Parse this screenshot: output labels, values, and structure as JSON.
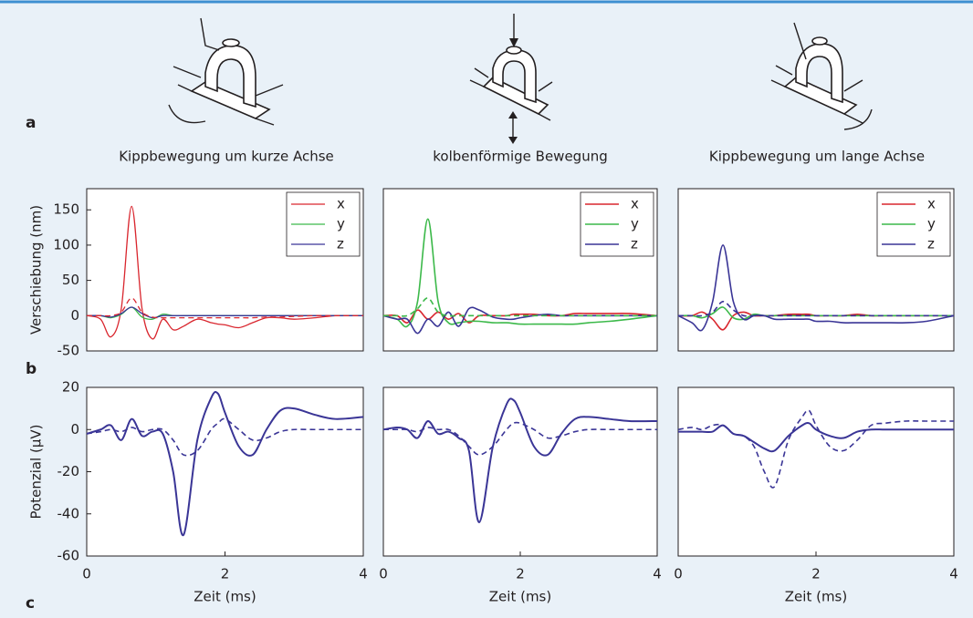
{
  "labels": {
    "a": "a",
    "b": "b",
    "c": "c"
  },
  "captions": [
    "Kippbewegung um kurze Achse",
    "kolbenförmige Bewegung",
    "Kippbewegung um lange Achse"
  ],
  "chart_data": [
    {
      "type": "line",
      "ylabel": "Verschiebung (nm)",
      "xlim": [
        0,
        4
      ],
      "ylim": [
        -50,
        180
      ],
      "yticks": [
        -50,
        0,
        50,
        100,
        150
      ],
      "legend": "upper right",
      "x": [
        0,
        0.2,
        0.35,
        0.5,
        0.65,
        0.8,
        0.95,
        1.1,
        1.25,
        1.4,
        1.6,
        1.8,
        1.9,
        2.0,
        2.2,
        2.4,
        2.6,
        2.8,
        3.0,
        3.3,
        3.6,
        4.0
      ],
      "series": [
        {
          "name": "x",
          "color": "#d9262e",
          "width": 1.3,
          "values": [
            0,
            -5,
            -30,
            10,
            155,
            10,
            -33,
            -5,
            -20,
            -15,
            -5,
            -10,
            -12,
            -13,
            -17,
            -10,
            -3,
            -3,
            -5,
            -3,
            0,
            0
          ]
        },
        {
          "name": "y",
          "color": "#3cb94a",
          "width": 1.3,
          "values": [
            0,
            0,
            -3,
            2,
            12,
            -2,
            -5,
            2,
            0,
            0,
            0,
            0,
            0,
            0,
            0,
            0,
            0,
            0,
            0,
            0,
            0,
            0
          ]
        },
        {
          "name": "z",
          "color": "#3a3596",
          "width": 1.3,
          "values": [
            0,
            0,
            -2,
            3,
            12,
            3,
            -3,
            0,
            0,
            0,
            0,
            0,
            0,
            0,
            0,
            0,
            0,
            0,
            0,
            0,
            0,
            0
          ]
        },
        {
          "color": "#d9262e",
          "dashed": true,
          "width": 1.3,
          "values": [
            0,
            0,
            0,
            5,
            25,
            5,
            -2,
            -3,
            -3,
            -3,
            -3,
            -3,
            -3,
            -3,
            -3,
            -3,
            -2,
            -2,
            -1,
            0,
            0,
            0
          ]
        }
      ]
    },
    {
      "type": "line",
      "xlim": [
        0,
        4
      ],
      "ylim": [
        -50,
        180
      ],
      "legend": "upper right",
      "x": [
        0,
        0.2,
        0.35,
        0.5,
        0.65,
        0.8,
        0.95,
        1.1,
        1.25,
        1.4,
        1.6,
        1.8,
        1.9,
        2.0,
        2.2,
        2.4,
        2.6,
        2.8,
        3.0,
        3.3,
        3.6,
        4.0
      ],
      "series": [
        {
          "name": "x",
          "color": "#d9262e",
          "width": 1.6,
          "values": [
            0,
            0,
            -10,
            8,
            -5,
            5,
            -5,
            3,
            -10,
            0,
            0,
            0,
            2,
            2,
            2,
            0,
            0,
            3,
            3,
            3,
            3,
            0
          ]
        },
        {
          "name": "y",
          "color": "#3cb94a",
          "width": 1.6,
          "values": [
            0,
            -5,
            -15,
            20,
            137,
            20,
            -10,
            -10,
            -8,
            -8,
            -10,
            -10,
            -11,
            -12,
            -12,
            -12,
            -12,
            -12,
            -10,
            -8,
            -5,
            0
          ]
        },
        {
          "name": "z",
          "color": "#3a3596",
          "width": 1.6,
          "values": [
            0,
            -5,
            -5,
            -25,
            -5,
            -15,
            5,
            -15,
            10,
            8,
            -2,
            -5,
            -5,
            -3,
            0,
            2,
            0,
            0,
            0,
            0,
            0,
            0
          ]
        },
        {
          "color": "#3cb94a",
          "dashed": true,
          "width": 1.6,
          "values": [
            0,
            0,
            0,
            10,
            25,
            5,
            0,
            0,
            0,
            0,
            0,
            0,
            0,
            0,
            0,
            0,
            0,
            0,
            0,
            0,
            0,
            0
          ]
        }
      ]
    },
    {
      "type": "line",
      "xlim": [
        0,
        4
      ],
      "ylim": [
        -50,
        180
      ],
      "legend": "upper right",
      "x": [
        0,
        0.2,
        0.35,
        0.5,
        0.65,
        0.8,
        0.95,
        1.1,
        1.25,
        1.4,
        1.6,
        1.8,
        1.9,
        2.0,
        2.2,
        2.4,
        2.6,
        2.8,
        3.0,
        3.3,
        3.6,
        4.0
      ],
      "series": [
        {
          "name": "x",
          "color": "#d9262e",
          "width": 1.6,
          "values": [
            0,
            0,
            5,
            -5,
            -20,
            0,
            5,
            0,
            0,
            0,
            2,
            2,
            2,
            0,
            0,
            0,
            2,
            0,
            0,
            0,
            0,
            0
          ]
        },
        {
          "name": "y",
          "color": "#3cb94a",
          "width": 1.6,
          "values": [
            0,
            0,
            -3,
            3,
            12,
            -3,
            -5,
            2,
            0,
            0,
            0,
            0,
            0,
            0,
            0,
            0,
            0,
            0,
            0,
            0,
            0,
            0
          ]
        },
        {
          "name": "z",
          "color": "#3a3596",
          "width": 1.6,
          "values": [
            0,
            -10,
            -20,
            20,
            100,
            20,
            -5,
            0,
            0,
            -5,
            -5,
            -5,
            -5,
            -8,
            -8,
            -10,
            -10,
            -10,
            -10,
            -10,
            -8,
            0
          ]
        },
        {
          "color": "#3a3596",
          "dashed": true,
          "width": 1.6,
          "values": [
            0,
            0,
            0,
            5,
            20,
            8,
            0,
            0,
            0,
            0,
            0,
            0,
            0,
            0,
            0,
            0,
            0,
            0,
            0,
            0,
            0,
            0
          ]
        }
      ]
    },
    {
      "type": "line",
      "ylabel": "Potenzial (µV)",
      "xlabel": "Zeit (ms)",
      "xlim": [
        0,
        4
      ],
      "ylim": [
        -60,
        20
      ],
      "xticks": [
        0,
        2,
        4
      ],
      "yticks": [
        -60,
        -40,
        -20,
        0,
        20
      ],
      "x": [
        0,
        0.2,
        0.35,
        0.5,
        0.65,
        0.8,
        0.95,
        1.1,
        1.25,
        1.4,
        1.6,
        1.8,
        1.9,
        2.0,
        2.2,
        2.4,
        2.6,
        2.8,
        3.0,
        3.3,
        3.6,
        4.0
      ],
      "series": [
        {
          "color": "#3a3596",
          "width": 2,
          "values": [
            -2,
            0,
            2,
            -5,
            5,
            -3,
            -1,
            -2,
            -20,
            -50,
            -5,
            15,
            17,
            8,
            -8,
            -12,
            0,
            9,
            10,
            7,
            5,
            6
          ]
        },
        {
          "color": "#3a3596",
          "dashed": true,
          "width": 1.6,
          "values": [
            -2,
            -1,
            0,
            -1,
            1,
            -1,
            0,
            0,
            -5,
            -12,
            -10,
            0,
            3,
            5,
            0,
            -5,
            -4,
            -1,
            0,
            0,
            0,
            0
          ]
        }
      ]
    },
    {
      "type": "line",
      "xlabel": "Zeit (ms)",
      "xlim": [
        0,
        4
      ],
      "ylim": [
        -60,
        20
      ],
      "xticks": [
        0,
        2,
        4
      ],
      "x": [
        0,
        0.2,
        0.35,
        0.5,
        0.65,
        0.8,
        0.95,
        1.1,
        1.25,
        1.4,
        1.6,
        1.8,
        1.9,
        2.0,
        2.2,
        2.4,
        2.6,
        2.8,
        3.0,
        3.3,
        3.6,
        4.0
      ],
      "series": [
        {
          "color": "#3a3596",
          "width": 2,
          "values": [
            0,
            1,
            0,
            -4,
            4,
            -2,
            -1,
            -4,
            -10,
            -44,
            -8,
            12,
            14,
            8,
            -8,
            -12,
            -2,
            5,
            6,
            5,
            4,
            4
          ]
        },
        {
          "color": "#3a3596",
          "dashed": true,
          "width": 1.6,
          "values": [
            0,
            0,
            0,
            -1,
            1,
            0,
            0,
            -3,
            -8,
            -12,
            -8,
            0,
            3,
            3,
            0,
            -4,
            -3,
            -1,
            0,
            0,
            0,
            0
          ]
        }
      ]
    },
    {
      "type": "line",
      "xlabel": "Zeit (ms)",
      "xlim": [
        0,
        4
      ],
      "ylim": [
        -60,
        20
      ],
      "xticks": [
        0,
        2,
        4
      ],
      "x": [
        0,
        0.2,
        0.35,
        0.5,
        0.65,
        0.8,
        0.95,
        1.1,
        1.25,
        1.4,
        1.6,
        1.8,
        1.9,
        2.0,
        2.2,
        2.4,
        2.6,
        2.8,
        3.0,
        3.3,
        3.6,
        4.0
      ],
      "series": [
        {
          "color": "#3a3596",
          "width": 2,
          "values": [
            -1,
            -1,
            -1,
            -1,
            2,
            -2,
            -3,
            -6,
            -9,
            -10,
            -3,
            2,
            3,
            0,
            -3,
            -4,
            -1,
            0,
            0,
            0,
            0,
            0
          ]
        },
        {
          "color": "#3a3596",
          "dashed": true,
          "width": 1.6,
          "values": [
            0,
            1,
            0,
            2,
            2,
            -2,
            -3,
            -8,
            -20,
            -27,
            -5,
            6,
            9,
            2,
            -8,
            -10,
            -5,
            2,
            3,
            4,
            4,
            4
          ]
        }
      ]
    }
  ]
}
